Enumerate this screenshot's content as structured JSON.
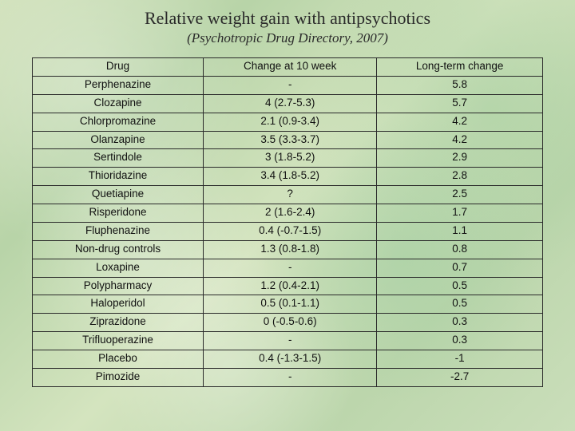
{
  "heading": {
    "title": "Relative weight gain with antipsychotics",
    "subtitle": "(Psychotropic Drug Directory, 2007)"
  },
  "table": {
    "type": "table",
    "columns": [
      "Drug",
      "Change at 10 week",
      "Long-term change"
    ],
    "column_widths_pct": [
      33.5,
      34.0,
      32.5
    ],
    "alignment": [
      "center",
      "center",
      "center"
    ],
    "header_fontsize": 13.5,
    "cell_fontsize": 13.5,
    "font_family": "Verdana",
    "border_color": "#2a2a2a",
    "text_color": "#111111",
    "background_color": "transparent",
    "groups": [
      {
        "rows": [
          [
            "Perphenazine",
            "-",
            "5.8"
          ],
          [
            "Clozapine",
            "4 (2.7-5.3)",
            "5.7"
          ]
        ]
      },
      {
        "rows": [
          [
            "Chlorpromazine",
            "2.1 (0.9-3.4)",
            "4.2"
          ]
        ]
      },
      {
        "rows": [
          [
            "Olanzapine",
            "3.5 (3.3-3.7)",
            "4.2"
          ]
        ]
      },
      {
        "rows": [
          [
            "Sertindole",
            "3 (1.8-5.2)",
            "2.9"
          ],
          [
            "Thioridazine",
            "3.4 (1.8-5.2)",
            "2.8"
          ]
        ]
      },
      {
        "rows": [
          [
            "Quetiapine",
            "?",
            "2.5"
          ]
        ]
      },
      {
        "rows": [
          [
            "Risperidone",
            "2 (1.6-2.4)",
            "1.7"
          ],
          [
            "Fluphenazine",
            "0.4 (-0.7-1.5)",
            "1.1"
          ],
          [
            "Non-drug controls",
            "1.3 (0.8-1.8)",
            "0.8"
          ]
        ]
      },
      {
        "rows": [
          [
            "Loxapine",
            "-",
            "0.7"
          ]
        ]
      },
      {
        "rows": [
          [
            "Polypharmacy",
            "1.2 (0.4-2.1)",
            "0.5"
          ],
          [
            "Haloperidol",
            "0.5 (0.1-1.1)",
            "0.5"
          ]
        ]
      },
      {
        "rows": [
          [
            "Ziprazidone",
            "0 (-0.5-0.6)",
            "0.3"
          ]
        ]
      },
      {
        "rows": [
          [
            "Trifluoperazine",
            "-",
            "0.3"
          ]
        ]
      },
      {
        "rows": [
          [
            "Placebo",
            "0.4 (-1.3-1.5)",
            "-1"
          ],
          [
            "Pimozide",
            "-",
            "-2.7"
          ]
        ]
      }
    ]
  },
  "colors": {
    "background_base": "#c6ddb2",
    "border": "#2a2a2a",
    "title_text": "#2a2a2a"
  }
}
